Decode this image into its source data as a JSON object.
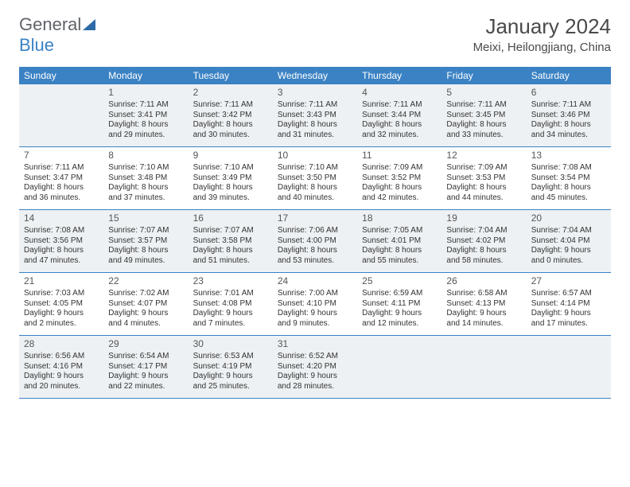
{
  "brand": {
    "part1": "General",
    "part2": "Blue"
  },
  "title": {
    "month": "January 2024",
    "location": "Meixi, Heilongjiang, China"
  },
  "colors": {
    "header_bg": "#3b82c4",
    "header_text": "#ffffff",
    "alt_bg": "#eef1f3",
    "border": "#3b82c4",
    "text": "#333333",
    "logo_gray": "#5f6368",
    "logo_blue": "#3b82c4",
    "title_color": "#4a4a4a"
  },
  "day_labels": [
    "Sunday",
    "Monday",
    "Tuesday",
    "Wednesday",
    "Thursday",
    "Friday",
    "Saturday"
  ],
  "weeks": [
    [
      {
        "num": "",
        "sunrise": "",
        "sunset": "",
        "daylight": ""
      },
      {
        "num": "1",
        "sunrise": "Sunrise: 7:11 AM",
        "sunset": "Sunset: 3:41 PM",
        "daylight": "Daylight: 8 hours and 29 minutes."
      },
      {
        "num": "2",
        "sunrise": "Sunrise: 7:11 AM",
        "sunset": "Sunset: 3:42 PM",
        "daylight": "Daylight: 8 hours and 30 minutes."
      },
      {
        "num": "3",
        "sunrise": "Sunrise: 7:11 AM",
        "sunset": "Sunset: 3:43 PM",
        "daylight": "Daylight: 8 hours and 31 minutes."
      },
      {
        "num": "4",
        "sunrise": "Sunrise: 7:11 AM",
        "sunset": "Sunset: 3:44 PM",
        "daylight": "Daylight: 8 hours and 32 minutes."
      },
      {
        "num": "5",
        "sunrise": "Sunrise: 7:11 AM",
        "sunset": "Sunset: 3:45 PM",
        "daylight": "Daylight: 8 hours and 33 minutes."
      },
      {
        "num": "6",
        "sunrise": "Sunrise: 7:11 AM",
        "sunset": "Sunset: 3:46 PM",
        "daylight": "Daylight: 8 hours and 34 minutes."
      }
    ],
    [
      {
        "num": "7",
        "sunrise": "Sunrise: 7:11 AM",
        "sunset": "Sunset: 3:47 PM",
        "daylight": "Daylight: 8 hours and 36 minutes."
      },
      {
        "num": "8",
        "sunrise": "Sunrise: 7:10 AM",
        "sunset": "Sunset: 3:48 PM",
        "daylight": "Daylight: 8 hours and 37 minutes."
      },
      {
        "num": "9",
        "sunrise": "Sunrise: 7:10 AM",
        "sunset": "Sunset: 3:49 PM",
        "daylight": "Daylight: 8 hours and 39 minutes."
      },
      {
        "num": "10",
        "sunrise": "Sunrise: 7:10 AM",
        "sunset": "Sunset: 3:50 PM",
        "daylight": "Daylight: 8 hours and 40 minutes."
      },
      {
        "num": "11",
        "sunrise": "Sunrise: 7:09 AM",
        "sunset": "Sunset: 3:52 PM",
        "daylight": "Daylight: 8 hours and 42 minutes."
      },
      {
        "num": "12",
        "sunrise": "Sunrise: 7:09 AM",
        "sunset": "Sunset: 3:53 PM",
        "daylight": "Daylight: 8 hours and 44 minutes."
      },
      {
        "num": "13",
        "sunrise": "Sunrise: 7:08 AM",
        "sunset": "Sunset: 3:54 PM",
        "daylight": "Daylight: 8 hours and 45 minutes."
      }
    ],
    [
      {
        "num": "14",
        "sunrise": "Sunrise: 7:08 AM",
        "sunset": "Sunset: 3:56 PM",
        "daylight": "Daylight: 8 hours and 47 minutes."
      },
      {
        "num": "15",
        "sunrise": "Sunrise: 7:07 AM",
        "sunset": "Sunset: 3:57 PM",
        "daylight": "Daylight: 8 hours and 49 minutes."
      },
      {
        "num": "16",
        "sunrise": "Sunrise: 7:07 AM",
        "sunset": "Sunset: 3:58 PM",
        "daylight": "Daylight: 8 hours and 51 minutes."
      },
      {
        "num": "17",
        "sunrise": "Sunrise: 7:06 AM",
        "sunset": "Sunset: 4:00 PM",
        "daylight": "Daylight: 8 hours and 53 minutes."
      },
      {
        "num": "18",
        "sunrise": "Sunrise: 7:05 AM",
        "sunset": "Sunset: 4:01 PM",
        "daylight": "Daylight: 8 hours and 55 minutes."
      },
      {
        "num": "19",
        "sunrise": "Sunrise: 7:04 AM",
        "sunset": "Sunset: 4:02 PM",
        "daylight": "Daylight: 8 hours and 58 minutes."
      },
      {
        "num": "20",
        "sunrise": "Sunrise: 7:04 AM",
        "sunset": "Sunset: 4:04 PM",
        "daylight": "Daylight: 9 hours and 0 minutes."
      }
    ],
    [
      {
        "num": "21",
        "sunrise": "Sunrise: 7:03 AM",
        "sunset": "Sunset: 4:05 PM",
        "daylight": "Daylight: 9 hours and 2 minutes."
      },
      {
        "num": "22",
        "sunrise": "Sunrise: 7:02 AM",
        "sunset": "Sunset: 4:07 PM",
        "daylight": "Daylight: 9 hours and 4 minutes."
      },
      {
        "num": "23",
        "sunrise": "Sunrise: 7:01 AM",
        "sunset": "Sunset: 4:08 PM",
        "daylight": "Daylight: 9 hours and 7 minutes."
      },
      {
        "num": "24",
        "sunrise": "Sunrise: 7:00 AM",
        "sunset": "Sunset: 4:10 PM",
        "daylight": "Daylight: 9 hours and 9 minutes."
      },
      {
        "num": "25",
        "sunrise": "Sunrise: 6:59 AM",
        "sunset": "Sunset: 4:11 PM",
        "daylight": "Daylight: 9 hours and 12 minutes."
      },
      {
        "num": "26",
        "sunrise": "Sunrise: 6:58 AM",
        "sunset": "Sunset: 4:13 PM",
        "daylight": "Daylight: 9 hours and 14 minutes."
      },
      {
        "num": "27",
        "sunrise": "Sunrise: 6:57 AM",
        "sunset": "Sunset: 4:14 PM",
        "daylight": "Daylight: 9 hours and 17 minutes."
      }
    ],
    [
      {
        "num": "28",
        "sunrise": "Sunrise: 6:56 AM",
        "sunset": "Sunset: 4:16 PM",
        "daylight": "Daylight: 9 hours and 20 minutes."
      },
      {
        "num": "29",
        "sunrise": "Sunrise: 6:54 AM",
        "sunset": "Sunset: 4:17 PM",
        "daylight": "Daylight: 9 hours and 22 minutes."
      },
      {
        "num": "30",
        "sunrise": "Sunrise: 6:53 AM",
        "sunset": "Sunset: 4:19 PM",
        "daylight": "Daylight: 9 hours and 25 minutes."
      },
      {
        "num": "31",
        "sunrise": "Sunrise: 6:52 AM",
        "sunset": "Sunset: 4:20 PM",
        "daylight": "Daylight: 9 hours and 28 minutes."
      },
      {
        "num": "",
        "sunrise": "",
        "sunset": "",
        "daylight": ""
      },
      {
        "num": "",
        "sunrise": "",
        "sunset": "",
        "daylight": ""
      },
      {
        "num": "",
        "sunrise": "",
        "sunset": "",
        "daylight": ""
      }
    ]
  ]
}
